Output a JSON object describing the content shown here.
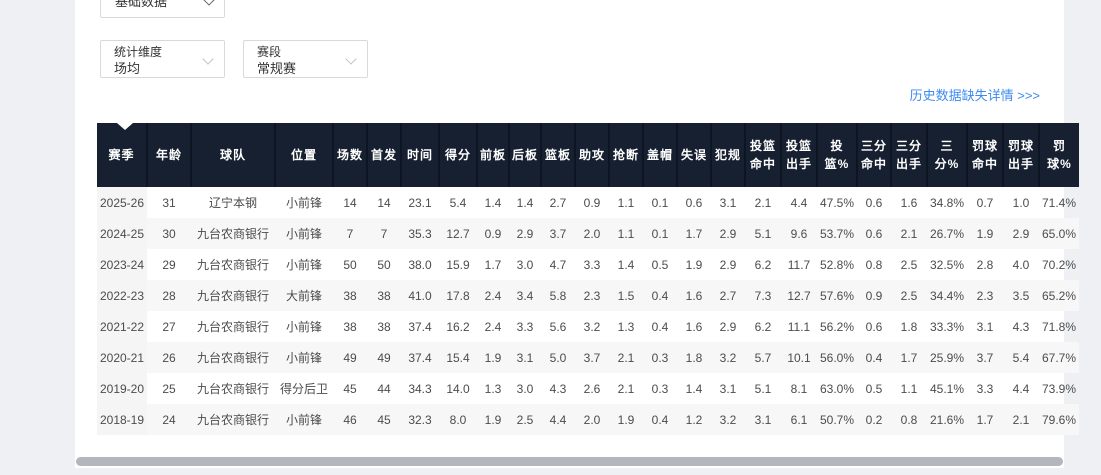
{
  "filters": {
    "data_type": {
      "value": "基础数据"
    },
    "dimension": {
      "label": "统计维度",
      "value": "场均"
    },
    "stage": {
      "label": "赛段",
      "value": "常规赛"
    }
  },
  "history_link": {
    "label": "历史数据缺失详情 >>>"
  },
  "colors": {
    "header_bg": "#172030",
    "link_blue": "#3d8bf2",
    "row_stripe": "#f7f7f7",
    "season_col_bg": "#f5f5f5",
    "page_bg": "#eef0f3",
    "scrollbar_thumb": "#b3b7bb"
  },
  "table": {
    "columns": [
      "赛季",
      "年龄",
      "球队",
      "位置",
      "场数",
      "首发",
      "时间",
      "得分",
      "前板",
      "后板",
      "篮板",
      "助攻",
      "抢断",
      "盖帽",
      "失误",
      "犯规",
      "投篮命中",
      "投篮出手",
      "投篮%",
      "三分命中",
      "三分出手",
      "三分%",
      "罚球命中",
      "罚球出手",
      "罚球%"
    ],
    "rows": [
      [
        "2025-26",
        "31",
        "辽宁本钢",
        "小前锋",
        "14",
        "14",
        "23.1",
        "5.4",
        "1.4",
        "1.4",
        "2.7",
        "0.9",
        "1.1",
        "0.1",
        "0.6",
        "3.1",
        "2.1",
        "4.4",
        "47.5%",
        "0.6",
        "1.6",
        "34.8%",
        "0.7",
        "1.0",
        "71.4%"
      ],
      [
        "2024-25",
        "30",
        "九台农商银行",
        "小前锋",
        "7",
        "7",
        "35.3",
        "12.7",
        "0.9",
        "2.9",
        "3.7",
        "2.0",
        "1.1",
        "0.1",
        "1.7",
        "2.9",
        "5.1",
        "9.6",
        "53.7%",
        "0.6",
        "2.1",
        "26.7%",
        "1.9",
        "2.9",
        "65.0%"
      ],
      [
        "2023-24",
        "29",
        "九台农商银行",
        "小前锋",
        "50",
        "50",
        "38.0",
        "15.9",
        "1.7",
        "3.0",
        "4.7",
        "3.3",
        "1.4",
        "0.5",
        "1.9",
        "2.9",
        "6.2",
        "11.7",
        "52.8%",
        "0.8",
        "2.5",
        "32.5%",
        "2.8",
        "4.0",
        "70.2%"
      ],
      [
        "2022-23",
        "28",
        "九台农商银行",
        "大前锋",
        "38",
        "38",
        "41.0",
        "17.8",
        "2.4",
        "3.4",
        "5.8",
        "2.3",
        "1.5",
        "0.4",
        "1.6",
        "2.7",
        "7.3",
        "12.7",
        "57.6%",
        "0.9",
        "2.5",
        "34.4%",
        "2.3",
        "3.5",
        "65.2%"
      ],
      [
        "2021-22",
        "27",
        "九台农商银行",
        "小前锋",
        "38",
        "38",
        "37.4",
        "16.2",
        "2.4",
        "3.3",
        "5.6",
        "3.2",
        "1.3",
        "0.4",
        "1.6",
        "2.9",
        "6.2",
        "11.1",
        "56.2%",
        "0.6",
        "1.8",
        "33.3%",
        "3.1",
        "4.3",
        "71.8%"
      ],
      [
        "2020-21",
        "26",
        "九台农商银行",
        "小前锋",
        "49",
        "49",
        "37.4",
        "15.4",
        "1.9",
        "3.1",
        "5.0",
        "3.7",
        "2.1",
        "0.3",
        "1.8",
        "3.2",
        "5.7",
        "10.1",
        "56.0%",
        "0.4",
        "1.7",
        "25.9%",
        "3.7",
        "5.4",
        "67.7%"
      ],
      [
        "2019-20",
        "25",
        "九台农商银行",
        "得分后卫",
        "45",
        "44",
        "34.3",
        "14.0",
        "1.3",
        "3.0",
        "4.3",
        "2.6",
        "2.1",
        "0.3",
        "1.4",
        "3.1",
        "5.1",
        "8.1",
        "63.0%",
        "0.5",
        "1.1",
        "45.1%",
        "3.3",
        "4.4",
        "73.9%"
      ],
      [
        "2018-19",
        "24",
        "九台农商银行",
        "小前锋",
        "46",
        "45",
        "32.3",
        "8.0",
        "1.9",
        "2.5",
        "4.4",
        "2.0",
        "1.9",
        "0.4",
        "1.2",
        "3.2",
        "3.1",
        "6.1",
        "50.7%",
        "0.2",
        "0.8",
        "21.6%",
        "1.7",
        "2.1",
        "79.6%"
      ]
    ]
  }
}
